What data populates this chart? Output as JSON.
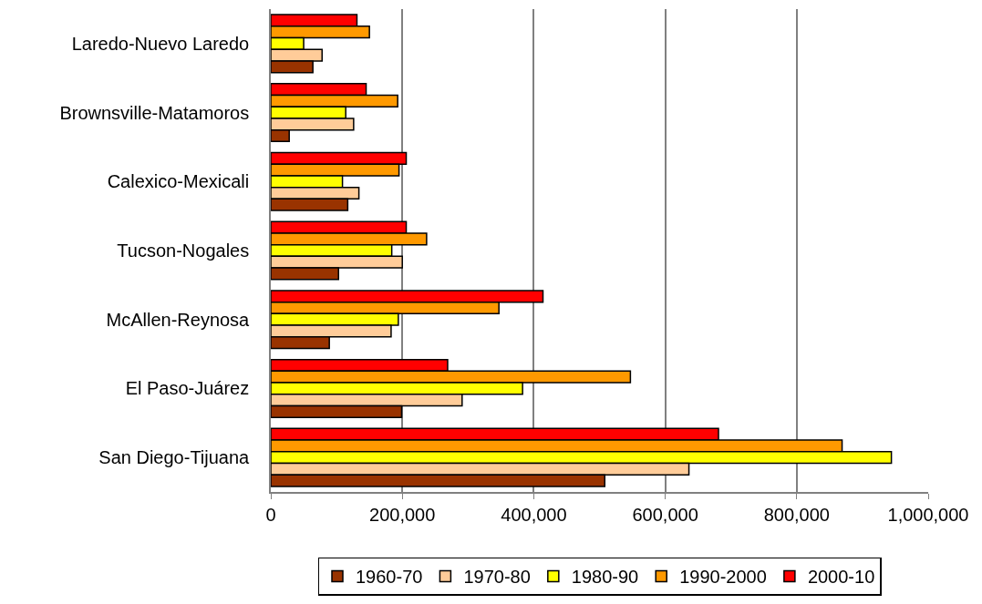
{
  "chart_data": {
    "type": "bar",
    "orientation": "horizontal",
    "categories": [
      "Laredo-Nuevo Laredo",
      "Brownsville-Matamoros",
      "Calexico-Mexicali",
      "Tucson-Nogales",
      "McAllen-Reynosa",
      "El Paso-Juárez",
      "San Diego-Tijuana"
    ],
    "series": [
      {
        "name": "1960-70",
        "color": "#993300",
        "values": [
          64000,
          28000,
          117000,
          103000,
          89000,
          199000,
          508000
        ]
      },
      {
        "name": "1970-80",
        "color": "#ffcc99",
        "values": [
          78000,
          126000,
          134000,
          200000,
          183000,
          291000,
          636000
        ]
      },
      {
        "name": "1980-90",
        "color": "#ffff00",
        "values": [
          50000,
          114000,
          109000,
          184000,
          194000,
          383000,
          944000
        ]
      },
      {
        "name": "1990-2000",
        "color": "#ff9900",
        "values": [
          150000,
          193000,
          195000,
          237000,
          347000,
          547000,
          869000
        ]
      },
      {
        "name": "2000-10",
        "color": "#ff0000",
        "values": [
          131000,
          145000,
          206000,
          206000,
          414000,
          269000,
          681000
        ]
      }
    ],
    "xlim": [
      0,
      1000000
    ],
    "xticks": [
      0,
      {
        "value": 200000,
        "label": "200,000"
      },
      {
        "value": 400000,
        "label": "400,000"
      },
      {
        "value": 600000,
        "label": "600,000"
      },
      {
        "value": 800000,
        "label": "800,000"
      },
      {
        "value": 1000000,
        "label": "1,000,000"
      }
    ],
    "grid": "x",
    "legend": "bottom"
  }
}
